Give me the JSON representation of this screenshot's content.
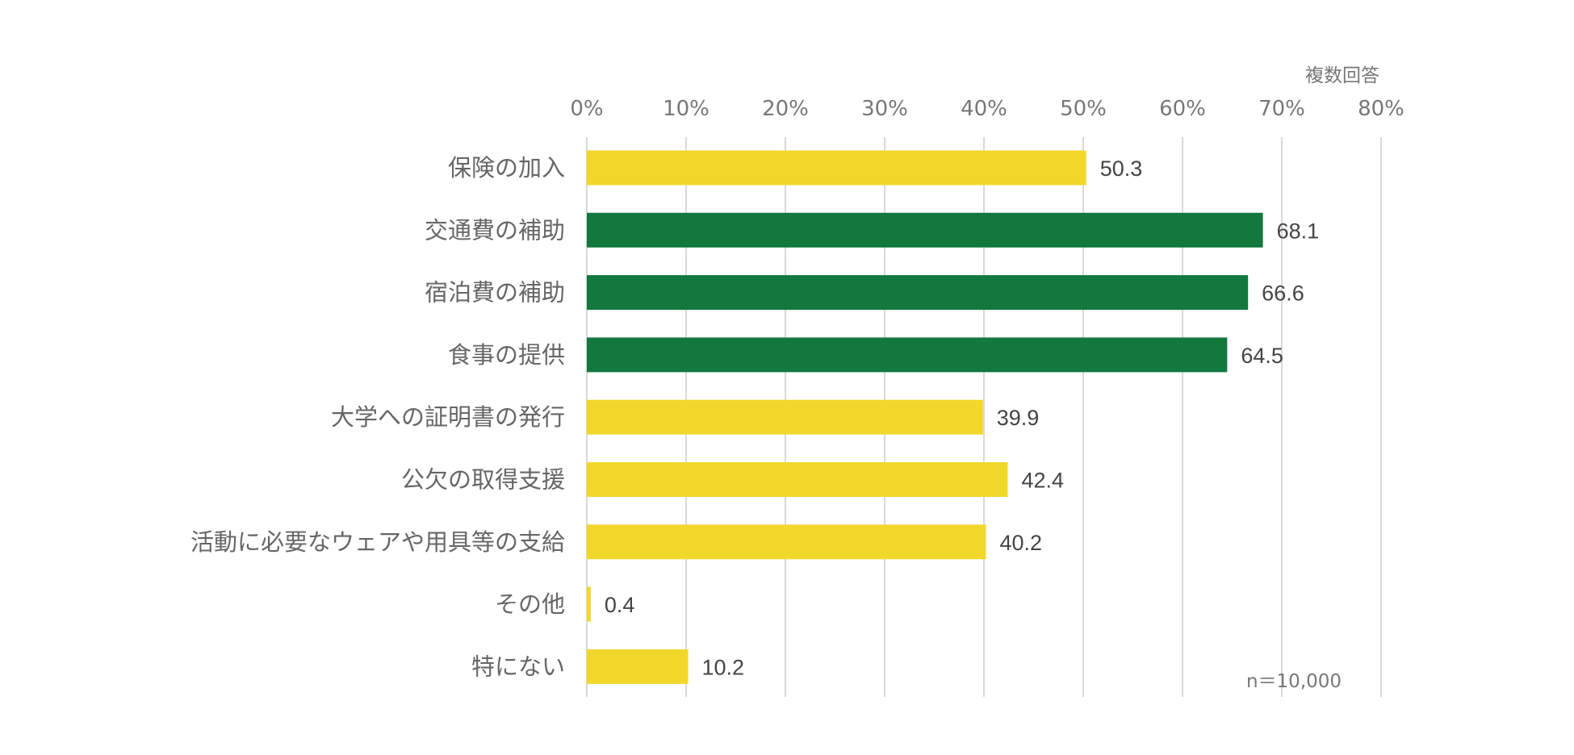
{
  "chart_data": {
    "type": "bar",
    "orientation": "horizontal",
    "categories": [
      "保険の加入",
      "交通費の補助",
      "宿泊費の補助",
      "食事の提供",
      "大学への証明書の発行",
      "公欠の取得支援",
      "活動に必要なウェアや用具等の支給",
      "その他",
      "特にない"
    ],
    "values": [
      50.3,
      68.1,
      66.6,
      64.5,
      39.9,
      42.4,
      40.2,
      0.4,
      10.2
    ],
    "value_labels": [
      "50.3",
      "68.1",
      "66.6",
      "64.5",
      "39.9",
      "42.4",
      "40.2",
      "0.4",
      "10.2"
    ],
    "highlight": [
      false,
      true,
      true,
      true,
      false,
      false,
      false,
      false,
      false
    ],
    "colors": {
      "default": "#F2D72B",
      "highlight": "#12783D",
      "grid": "#D9D9D9"
    },
    "xlim": [
      0,
      80
    ],
    "ticks": [
      0,
      10,
      20,
      30,
      40,
      50,
      60,
      70,
      80
    ],
    "tick_labels": [
      "0%",
      "10%",
      "20%",
      "30%",
      "40%",
      "50%",
      "60%",
      "70%",
      "80%"
    ],
    "axis_position": "top",
    "grid": true,
    "note_top_right": "複数回答",
    "note_bottom_right": "n＝10,000"
  }
}
